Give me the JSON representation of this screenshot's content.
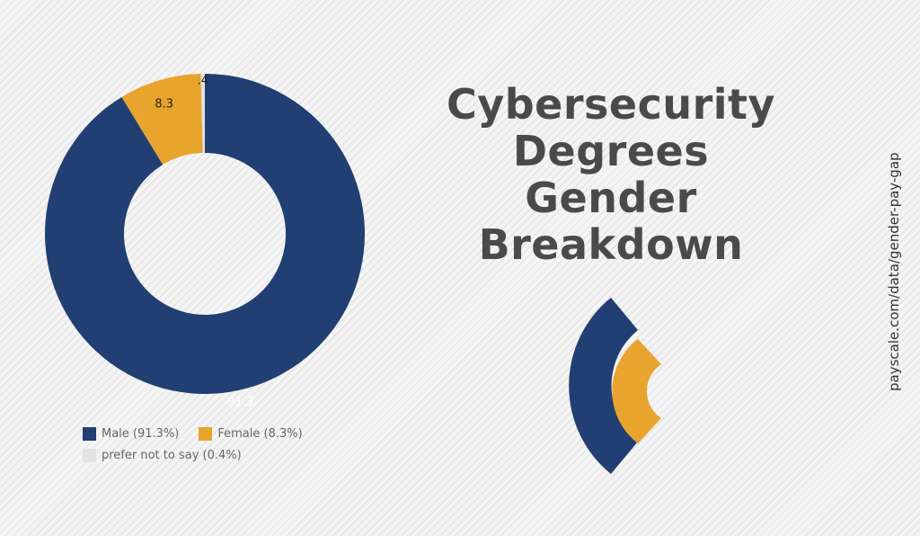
{
  "title_lines": [
    "Cybersecurity",
    "Degrees",
    "Gender",
    "Breakdown"
  ],
  "source": "payscale.com/data/gender-pay-gap",
  "colors": {
    "male": "#213f72",
    "female": "#e8a42c",
    "prefer_not": "#e2e2e2"
  },
  "legend": [
    {
      "label": "Male (91.3%)",
      "color": "#213f72"
    },
    {
      "label": "Female (8.3%)",
      "color": "#e8a42c"
    },
    {
      "label": "prefer not to say (0.4%)",
      "color": "#e2e2e2"
    }
  ],
  "chart_data": {
    "type": "pie",
    "donut": true,
    "slices": [
      {
        "label": "Male",
        "value": 91.3,
        "data_label": "91.3",
        "color": "#213f72"
      },
      {
        "label": "Female",
        "value": 8.3,
        "data_label": "8.3",
        "color": "#e8a42c"
      },
      {
        "label": "prefer not to say",
        "value": 0.4,
        "data_label": ".4",
        "color": "#e2e2e2"
      }
    ]
  }
}
